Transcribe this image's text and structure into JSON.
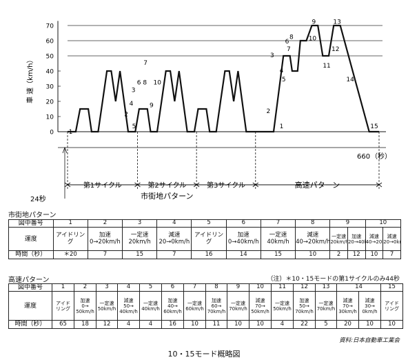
{
  "chart_data": {
    "type": "line",
    "ylabel": "車 速（km/h）",
    "xlabel": "（秒）",
    "x_end_label": "660",
    "y_ticks": [
      "0",
      "10",
      "20",
      "30",
      "40",
      "50",
      "60",
      "70"
    ],
    "ylim": [
      0,
      75
    ],
    "xlim": [
      0,
      660
    ],
    "x_start_label": "24秒",
    "speed_profile": {
      "t": [
        0,
        15,
        23,
        38,
        44,
        56,
        68,
        76,
        82,
        92,
        98,
        114,
        125,
        128,
        143,
        149,
        161,
        173,
        181,
        187,
        197,
        203,
        219,
        230,
        233,
        248,
        254,
        266,
        278,
        286,
        292,
        302,
        308,
        324,
        335,
        350,
        377,
        394,
        410,
        420,
        427,
        440,
        447,
        454,
        459,
        462,
        482,
        494,
        501,
        511,
        524,
        539,
        555,
        559,
        578,
        589,
        610,
        660
      ],
      "v": [
        0,
        0,
        15,
        15,
        0,
        0,
        20,
        40,
        40,
        20,
        40,
        0,
        0,
        0,
        15,
        15,
        0,
        0,
        20,
        20,
        40,
        40,
        0,
        0,
        0,
        15,
        15,
        0,
        0,
        20,
        40,
        20,
        40,
        0,
        0,
        0,
        0,
        50,
        50,
        40,
        40,
        60,
        60,
        70,
        70,
        50,
        50,
        70,
        70,
        70,
        40,
        30,
        0,
        0,
        0,
        0,
        0,
        0
      ]
    },
    "profile_points": [
      {
        "t": 0,
        "v": 0
      },
      {
        "t": 15,
        "v": 0
      },
      {
        "t": 23,
        "v": 15
      },
      {
        "t": 38,
        "v": 15
      },
      {
        "t": 44,
        "v": 0
      },
      {
        "t": 56,
        "v": 0
      },
      {
        "t": 64,
        "v": 20
      },
      {
        "t": 72,
        "v": 40
      },
      {
        "t": 80,
        "v": 40
      },
      {
        "t": 88,
        "v": 20
      },
      {
        "t": 96,
        "v": 40
      },
      {
        "t": 111,
        "v": 0
      },
      {
        "t": 124,
        "v": 0
      },
      {
        "t": 131,
        "v": 15
      },
      {
        "t": 146,
        "v": 15
      },
      {
        "t": 152,
        "v": 0
      },
      {
        "t": 164,
        "v": 0
      },
      {
        "t": 172,
        "v": 20
      },
      {
        "t": 180,
        "v": 40
      },
      {
        "t": 188,
        "v": 40
      },
      {
        "t": 196,
        "v": 20
      },
      {
        "t": 204,
        "v": 40
      },
      {
        "t": 219,
        "v": 0
      },
      {
        "t": 232,
        "v": 0
      },
      {
        "t": 239,
        "v": 15
      },
      {
        "t": 254,
        "v": 15
      },
      {
        "t": 260,
        "v": 0
      },
      {
        "t": 272,
        "v": 0
      },
      {
        "t": 280,
        "v": 20
      },
      {
        "t": 288,
        "v": 40
      },
      {
        "t": 296,
        "v": 40
      },
      {
        "t": 304,
        "v": 20
      },
      {
        "t": 312,
        "v": 40
      },
      {
        "t": 327,
        "v": 0
      },
      {
        "t": 340,
        "v": 0
      },
      {
        "t": 377,
        "v": 0
      },
      {
        "t": 395,
        "v": 50
      },
      {
        "t": 407,
        "v": 50
      },
      {
        "t": 411,
        "v": 40
      },
      {
        "t": 421,
        "v": 40
      },
      {
        "t": 426,
        "v": 60
      },
      {
        "t": 437,
        "v": 60
      },
      {
        "t": 447,
        "v": 70
      },
      {
        "t": 458,
        "v": 70
      },
      {
        "t": 467,
        "v": 50
      },
      {
        "t": 478,
        "v": 50
      },
      {
        "t": 487,
        "v": 70
      },
      {
        "t": 499,
        "v": 70
      },
      {
        "t": 552,
        "v": 0
      },
      {
        "t": 570,
        "v": 0
      }
    ],
    "segment_labels": [
      {
        "text": "1",
        "t": 2,
        "v": 2
      },
      {
        "text": "2",
        "t": 132,
        "v": 15
      },
      {
        "text": "3",
        "t": 159,
        "v": 30
      },
      {
        "text": "4",
        "t": 175,
        "v": 18
      },
      {
        "text": "5",
        "t": 177,
        "v": 5
      },
      {
        "text": "6",
        "t": 183,
        "v": 34
      },
      {
        "text": "7",
        "t": 199,
        "v": 47
      },
      {
        "text": "8",
        "t": 196,
        "v": 34
      },
      {
        "text": "9",
        "t": 222,
        "v": 18
      },
      {
        "text": "10",
        "t": 238,
        "v": 34
      },
      {
        "text": "1",
        "t": 380,
        "v": 4
      },
      {
        "text": "2",
        "t": 402,
        "v": 16
      },
      {
        "text": "3",
        "t": 419,
        "v": 53
      },
      {
        "text": "4",
        "t": 427,
        "v": 44
      },
      {
        "text": "5",
        "t": 435,
        "v": 36
      },
      {
        "text": "6",
        "t": 442,
        "v": 64
      },
      {
        "text": "7",
        "t": 448,
        "v": 58
      },
      {
        "text": "8",
        "t": 450,
        "v": 67
      },
      {
        "text": "9",
        "t": 468,
        "v": 74
      },
      {
        "text": "10",
        "t": 470,
        "v": 64
      },
      {
        "text": "11",
        "t": 487,
        "v": 45
      },
      {
        "text": "12",
        "t": 514,
        "v": 56
      },
      {
        "text": "13",
        "t": 514,
        "v": 74
      },
      {
        "text": "14",
        "t": 545,
        "v": 35
      },
      {
        "text": "15",
        "t": 563,
        "v": 5
      }
    ],
    "cycle_labels": [
      "第1サイクル",
      "第2サイクル",
      "第3サイクル",
      "高速パターン"
    ],
    "urban_label": "市街地パターン"
  },
  "urban": {
    "title": "市街地パターン",
    "row_headers": [
      "図中番号",
      "運度",
      "時間（秒）"
    ],
    "cols": [
      {
        "no": "1",
        "mode": "アイドリング",
        "time": "＊20"
      },
      {
        "no": "2",
        "mode": "加速 0→20km/h",
        "time": "7"
      },
      {
        "no": "3",
        "mode": "一定速 20km/h",
        "time": "15"
      },
      {
        "no": "4",
        "mode": "減速 20→0km/h",
        "time": "7"
      },
      {
        "no": "5",
        "mode": "アイドリング",
        "time": "16"
      },
      {
        "no": "6",
        "mode": "加速 0→40km/h",
        "time": "14"
      },
      {
        "no": "7",
        "mode": "一定速 40km/h",
        "time": "15"
      },
      {
        "no": "8",
        "mode": "減速 40→20km/h",
        "time": "10"
      },
      {
        "no": "9a",
        "mode": "一定速 20km/h",
        "time": "2"
      },
      {
        "no": "9b",
        "mode": "加速 20→40km/h",
        "time": "12"
      },
      {
        "no": "10a",
        "mode": "減速 40→20km/h",
        "time": "10"
      },
      {
        "no": "10b",
        "mode": "減速 20→0km/h",
        "time": "7"
      }
    ],
    "merged_nos": [
      "9",
      "10"
    ]
  },
  "highway": {
    "title": "高速パターン",
    "note": "（注）＊10・15モードの第1サイクルのみ44秒",
    "row_headers": [
      "図中番号",
      "運度",
      "時間（秒）"
    ],
    "cols": [
      {
        "no": "1",
        "mode": "アイド リング",
        "time": "65"
      },
      {
        "no": "2",
        "mode": "加速 0→ 50km/h",
        "time": "18"
      },
      {
        "no": "3",
        "mode": "一定速 50km/h",
        "time": "12"
      },
      {
        "no": "4",
        "mode": "減速 50→ 40km/h",
        "time": "4"
      },
      {
        "no": "5",
        "mode": "一定速 40km/h",
        "time": "4"
      },
      {
        "no": "6",
        "mode": "加速 40→ 60km/h",
        "time": "16"
      },
      {
        "no": "7",
        "mode": "一定速 60km/h",
        "time": "10"
      },
      {
        "no": "8",
        "mode": "加速 60→ 70km/h",
        "time": "11"
      },
      {
        "no": "9",
        "mode": "一定速 70km/h",
        "time": "10"
      },
      {
        "no": "10",
        "mode": "減速 70→ 50km/h",
        "time": "10"
      },
      {
        "no": "11",
        "mode": "一定速 50km/h",
        "time": "4"
      },
      {
        "no": "12",
        "mode": "加速 50→ 70km/h",
        "time": "22"
      },
      {
        "no": "13",
        "mode": "一定速 70km/h",
        "time": "5"
      },
      {
        "no": "14a",
        "mode": "減速 70→ 30km/h",
        "time": "20"
      },
      {
        "no": "14b",
        "mode": "減速 30→ 0km/h",
        "time": "10"
      },
      {
        "no": "15",
        "mode": "アイド リング",
        "time": "10"
      }
    ],
    "merged_nos": [
      "14"
    ]
  },
  "credit": "資料:日本自動車工業会",
  "caption": "10・15モード概略図"
}
